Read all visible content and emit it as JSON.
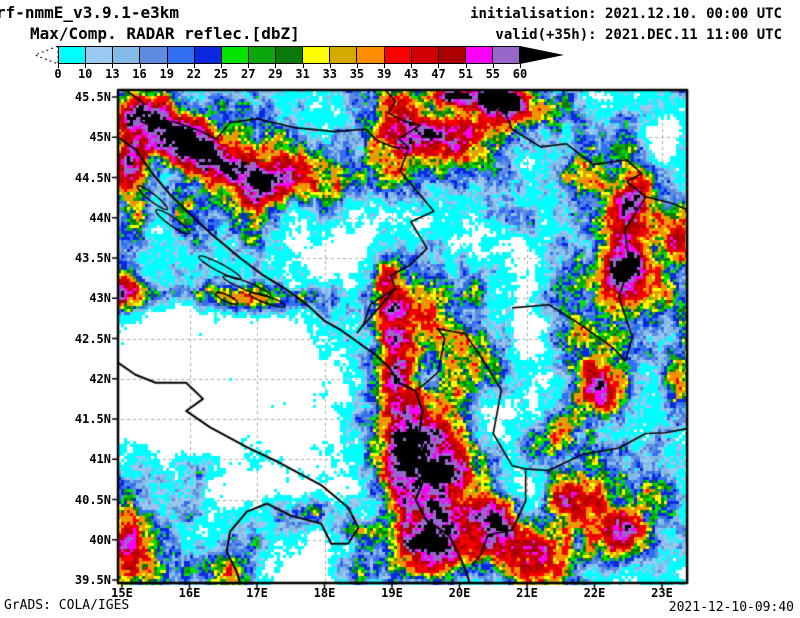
{
  "header": {
    "model_title": "rf-nmmE_v3.9.1-e3km",
    "field_title": "Max/Comp. RADAR reflec.[dbZ]",
    "init_label": "initialisation: 2021.12.10. 00:00 UTC",
    "valid_label": "valid(+35h): 2021.DEC.11 11:00 UTC"
  },
  "footer": {
    "left": "GrADS: COLA/IGES",
    "right": "2021-12-10-09:40"
  },
  "colorbar": {
    "tick_labels": [
      "0",
      "10",
      "13",
      "16",
      "19",
      "22",
      "25",
      "27",
      "29",
      "31",
      "33",
      "35",
      "39",
      "43",
      "47",
      "51",
      "55",
      "60"
    ],
    "levels": [
      0,
      10,
      13,
      16,
      19,
      22,
      25,
      27,
      29,
      31,
      33,
      35,
      39,
      43,
      47,
      51,
      55,
      60
    ],
    "colors": [
      "#00ffff",
      "#9ac8f0",
      "#82bce6",
      "#5e8ce0",
      "#3070f0",
      "#0a28e0",
      "#00e400",
      "#0aa80a",
      "#0a780a",
      "#fdfd00",
      "#d4aa00",
      "#fc8c00",
      "#fa0000",
      "#d00000",
      "#aa0000",
      "#fa00fa",
      "#9966cc"
    ],
    "underflow_color": "#ffffff",
    "overflow_color": "#000000"
  },
  "chart_data": {
    "type": "heatmap",
    "title": "Max/Comp. RADAR reflec.[dbZ]",
    "units": "dbZ",
    "levels": [
      0,
      10,
      13,
      16,
      19,
      22,
      25,
      27,
      29,
      31,
      33,
      35,
      39,
      43,
      47,
      51,
      55,
      60
    ],
    "x_range": [
      15,
      23
    ],
    "y_range": [
      39.5,
      45.5
    ],
    "x_tick_labels": [
      "15E",
      "16E",
      "17E",
      "18E",
      "19E",
      "20E",
      "21E",
      "22E",
      "23E"
    ],
    "y_tick_labels": [
      "45.5N",
      "45N",
      "44.5N",
      "44N",
      "43.5N",
      "43N",
      "42.5N",
      "42N",
      "41.5N",
      "41N",
      "40.5N",
      "40N",
      "39.5N"
    ]
  },
  "map": {
    "extent": {
      "lon_min": 14.941,
      "lon_max": 23.372,
      "lat_min": 39.463,
      "lat_max": 45.587
    },
    "lat_values": [
      45.5,
      45.0,
      44.5,
      44.0,
      43.5,
      43.0,
      42.5,
      42.0,
      41.5,
      41.0,
      40.5,
      40.0,
      39.5
    ],
    "lat_labels": [
      "45.5N",
      "45N",
      "44.5N",
      "44N",
      "43.5N",
      "43N",
      "42.5N",
      "42N",
      "41.5N",
      "41N",
      "40.5N",
      "40N",
      "39.5N"
    ],
    "lon_values": [
      15,
      16,
      17,
      18,
      19,
      20,
      21,
      22,
      23
    ],
    "lon_labels": [
      "15E",
      "16E",
      "17E",
      "18E",
      "19E",
      "20E",
      "21E",
      "22E",
      "23E"
    ],
    "grid_lat_step": 0.5,
    "grid_lon_step": 1.0,
    "gridline_color": "#aaaaaa",
    "echo_features": [
      [
        16.5,
        42.7,
        1.9,
        0.85,
        -38
      ],
      [
        17.2,
        41.0,
        1.5,
        0.85,
        -34
      ],
      [
        15.8,
        41.8,
        1.0,
        0.6,
        -26
      ],
      [
        18.55,
        40.35,
        0.55,
        0.45,
        -28
      ],
      [
        18.7,
        43.55,
        0.75,
        0.45,
        -20
      ],
      [
        20.5,
        43.75,
        0.55,
        0.35,
        -18
      ],
      [
        22.9,
        41.4,
        0.45,
        0.5,
        -18
      ],
      [
        17.8,
        39.75,
        0.8,
        0.35,
        -20
      ],
      [
        22.95,
        44.95,
        0.35,
        0.3,
        -14
      ],
      [
        15.35,
        45.22,
        0.45,
        0.28,
        42
      ],
      [
        15.95,
        44.92,
        0.5,
        0.28,
        44
      ],
      [
        16.55,
        44.63,
        0.5,
        0.26,
        42
      ],
      [
        17.1,
        44.38,
        0.45,
        0.24,
        36
      ],
      [
        15.12,
        44.6,
        0.28,
        0.35,
        32
      ],
      [
        15.18,
        43.95,
        0.22,
        0.28,
        26
      ],
      [
        15.9,
        43.05,
        1.25,
        0.22,
        32
      ],
      [
        17.1,
        42.95,
        0.8,
        0.2,
        28
      ],
      [
        15.05,
        43.05,
        0.4,
        0.3,
        30
      ],
      [
        19.6,
        44.95,
        1.35,
        0.38,
        33
      ],
      [
        20.9,
        45.3,
        0.8,
        0.3,
        31
      ],
      [
        20.55,
        45.5,
        0.35,
        0.15,
        46
      ],
      [
        19.9,
        45.52,
        0.3,
        0.13,
        42
      ],
      [
        19.3,
        45.1,
        0.5,
        0.3,
        28
      ],
      [
        19.4,
        45.55,
        1.6,
        0.22,
        20
      ],
      [
        18.2,
        44.45,
        0.9,
        0.3,
        14
      ],
      [
        17.5,
        44.8,
        0.5,
        0.35,
        15
      ],
      [
        18.6,
        43.1,
        0.6,
        0.4,
        14
      ],
      [
        19.6,
        42.9,
        0.45,
        0.35,
        18
      ],
      [
        21.0,
        44.0,
        0.5,
        0.4,
        16
      ],
      [
        18.95,
        43.25,
        0.3,
        0.45,
        28
      ],
      [
        19.0,
        42.55,
        0.28,
        0.5,
        32
      ],
      [
        19.05,
        41.85,
        0.3,
        0.55,
        33
      ],
      [
        19.3,
        41.1,
        0.5,
        0.6,
        32
      ],
      [
        19.8,
        40.5,
        0.75,
        0.65,
        34
      ],
      [
        19.6,
        39.8,
        0.7,
        0.4,
        33
      ],
      [
        21.1,
        39.85,
        0.55,
        0.35,
        46
      ],
      [
        20.6,
        40.3,
        0.4,
        0.3,
        42
      ],
      [
        21.6,
        40.5,
        0.45,
        0.35,
        40
      ],
      [
        22.3,
        40.0,
        0.5,
        0.3,
        36
      ],
      [
        21.3,
        41.2,
        0.45,
        0.35,
        34
      ],
      [
        22.1,
        41.8,
        0.45,
        0.4,
        36
      ],
      [
        21.7,
        42.5,
        0.4,
        0.35,
        32
      ],
      [
        22.4,
        43.2,
        0.4,
        0.4,
        34
      ],
      [
        22.6,
        44.3,
        0.35,
        0.5,
        38
      ],
      [
        21.9,
        44.55,
        0.3,
        0.3,
        30
      ],
      [
        20.5,
        42.35,
        0.35,
        0.3,
        26
      ],
      [
        20.25,
        43.05,
        0.3,
        0.3,
        22
      ],
      [
        23.2,
        43.8,
        0.3,
        0.4,
        28
      ],
      [
        23.25,
        42.0,
        0.25,
        0.35,
        26
      ],
      [
        15.15,
        39.85,
        0.5,
        0.5,
        30
      ],
      [
        16.5,
        39.6,
        0.45,
        0.3,
        28
      ],
      [
        16.2,
        40.9,
        0.3,
        0.2,
        22
      ],
      [
        17.9,
        40.35,
        0.6,
        0.18,
        26
      ],
      [
        18.45,
        40.1,
        0.35,
        0.15,
        28
      ],
      [
        18.3,
        39.6,
        0.5,
        0.25,
        30
      ]
    ],
    "coastlines": [
      [
        [
          14.94,
          45.0
        ],
        [
          15.2,
          44.85
        ],
        [
          15.45,
          44.55
        ],
        [
          15.7,
          44.3
        ],
        [
          16.0,
          44.05
        ],
        [
          16.35,
          43.78
        ],
        [
          16.75,
          43.5
        ],
        [
          17.1,
          43.28
        ],
        [
          17.45,
          43.1
        ],
        [
          17.7,
          42.95
        ],
        [
          18.0,
          42.72
        ],
        [
          18.25,
          42.6
        ],
        [
          18.5,
          42.45
        ],
        [
          18.75,
          42.3
        ],
        [
          18.95,
          42.15
        ],
        [
          19.1,
          41.95
        ],
        [
          19.35,
          41.85
        ],
        [
          19.45,
          41.6
        ],
        [
          19.4,
          41.3
        ],
        [
          19.5,
          41.0
        ],
        [
          19.45,
          40.7
        ],
        [
          19.35,
          40.5
        ],
        [
          19.5,
          40.25
        ],
        [
          19.85,
          40.05
        ],
        [
          20.0,
          39.8
        ],
        [
          20.1,
          39.6
        ],
        [
          20.15,
          39.46
        ]
      ],
      [
        [
          14.94,
          42.2
        ],
        [
          15.2,
          42.05
        ],
        [
          15.5,
          41.95
        ],
        [
          15.95,
          41.95
        ],
        [
          16.2,
          41.75
        ],
        [
          15.95,
          41.6
        ],
        [
          16.3,
          41.4
        ],
        [
          16.85,
          41.15
        ],
        [
          17.35,
          40.95
        ],
        [
          17.95,
          40.68
        ],
        [
          18.35,
          40.4
        ],
        [
          18.5,
          40.15
        ],
        [
          18.35,
          39.95
        ],
        [
          18.1,
          39.95
        ],
        [
          17.95,
          40.2
        ],
        [
          17.5,
          40.3
        ],
        [
          17.15,
          40.45
        ],
        [
          16.85,
          40.35
        ],
        [
          16.6,
          40.1
        ],
        [
          16.55,
          39.85
        ],
        [
          16.7,
          39.6
        ],
        [
          16.75,
          39.46
        ]
      ]
    ],
    "islands": [
      [
        15.45,
        44.25,
        0.28,
        0.045,
        38
      ],
      [
        15.75,
        43.95,
        0.3,
        0.05,
        35
      ],
      [
        16.45,
        43.38,
        0.35,
        0.05,
        28
      ],
      [
        16.85,
        43.15,
        0.38,
        0.05,
        22
      ],
      [
        17.15,
        42.98,
        0.28,
        0.045,
        20
      ],
      [
        16.55,
        43.0,
        0.18,
        0.04,
        25
      ]
    ],
    "borders": [
      [
        [
          15.05,
          45.59
        ],
        [
          15.32,
          45.42
        ],
        [
          15.28,
          45.2
        ],
        [
          15.5,
          45.12
        ],
        [
          15.75,
          45.2
        ]
      ],
      [
        [
          15.75,
          45.2
        ],
        [
          16.15,
          45.08
        ],
        [
          16.4,
          44.98
        ],
        [
          16.6,
          45.18
        ],
        [
          17.0,
          45.23
        ],
        [
          17.55,
          45.12
        ],
        [
          18.15,
          45.07
        ],
        [
          18.6,
          45.1
        ],
        [
          18.8,
          44.95
        ],
        [
          19.05,
          44.87
        ],
        [
          19.25,
          44.87
        ]
      ],
      [
        [
          19.25,
          44.87
        ],
        [
          19.12,
          44.58
        ],
        [
          19.38,
          44.32
        ],
        [
          19.62,
          44.08
        ],
        [
          19.28,
          43.95
        ],
        [
          19.52,
          43.62
        ],
        [
          19.28,
          43.42
        ],
        [
          18.98,
          43.28
        ],
        [
          19.05,
          43.12
        ],
        [
          18.68,
          42.92
        ],
        [
          18.58,
          42.68
        ],
        [
          18.48,
          42.57
        ]
      ],
      [
        [
          18.9,
          45.59
        ],
        [
          19.05,
          45.45
        ],
        [
          18.95,
          45.3
        ],
        [
          19.18,
          45.2
        ],
        [
          19.42,
          45.15
        ],
        [
          19.1,
          44.98
        ],
        [
          19.25,
          44.87
        ]
      ],
      [
        [
          20.28,
          45.59
        ],
        [
          20.38,
          45.42
        ],
        [
          20.68,
          45.3
        ],
        [
          20.78,
          45.1
        ],
        [
          21.2,
          44.88
        ],
        [
          21.58,
          44.92
        ],
        [
          21.98,
          44.66
        ],
        [
          22.48,
          44.72
        ],
        [
          22.7,
          44.55
        ],
        [
          22.48,
          44.45
        ],
        [
          22.76,
          44.26
        ]
      ],
      [
        [
          22.76,
          44.26
        ],
        [
          23.15,
          44.18
        ],
        [
          23.37,
          44.1
        ]
      ],
      [
        [
          22.76,
          44.26
        ],
        [
          22.45,
          43.85
        ],
        [
          22.52,
          43.4
        ],
        [
          22.36,
          43.02
        ],
        [
          22.56,
          42.52
        ],
        [
          22.46,
          42.22
        ]
      ],
      [
        [
          20.78,
          42.88
        ],
        [
          21.32,
          42.92
        ],
        [
          21.78,
          42.68
        ],
        [
          22.28,
          42.38
        ],
        [
          22.46,
          42.22
        ]
      ],
      [
        [
          20.98,
          40.88
        ],
        [
          21.32,
          40.86
        ],
        [
          21.82,
          41.06
        ],
        [
          22.36,
          41.14
        ],
        [
          22.76,
          41.32
        ],
        [
          23.05,
          41.33
        ],
        [
          23.37,
          41.38
        ]
      ],
      [
        [
          20.62,
          41.86
        ],
        [
          20.5,
          41.32
        ],
        [
          20.78,
          40.92
        ],
        [
          20.98,
          40.88
        ]
      ],
      [
        [
          19.38,
          41.86
        ],
        [
          19.68,
          42.08
        ],
        [
          19.78,
          42.5
        ],
        [
          19.68,
          42.62
        ],
        [
          20.08,
          42.56
        ],
        [
          20.28,
          42.32
        ],
        [
          20.62,
          41.86
        ]
      ],
      [
        [
          20.18,
          39.68
        ],
        [
          20.32,
          39.82
        ],
        [
          20.42,
          40.06
        ],
        [
          20.78,
          40.12
        ],
        [
          20.98,
          40.48
        ],
        [
          20.98,
          40.88
        ]
      ],
      [
        [
          18.48,
          42.57
        ],
        [
          19.05,
          43.12
        ]
      ]
    ]
  }
}
